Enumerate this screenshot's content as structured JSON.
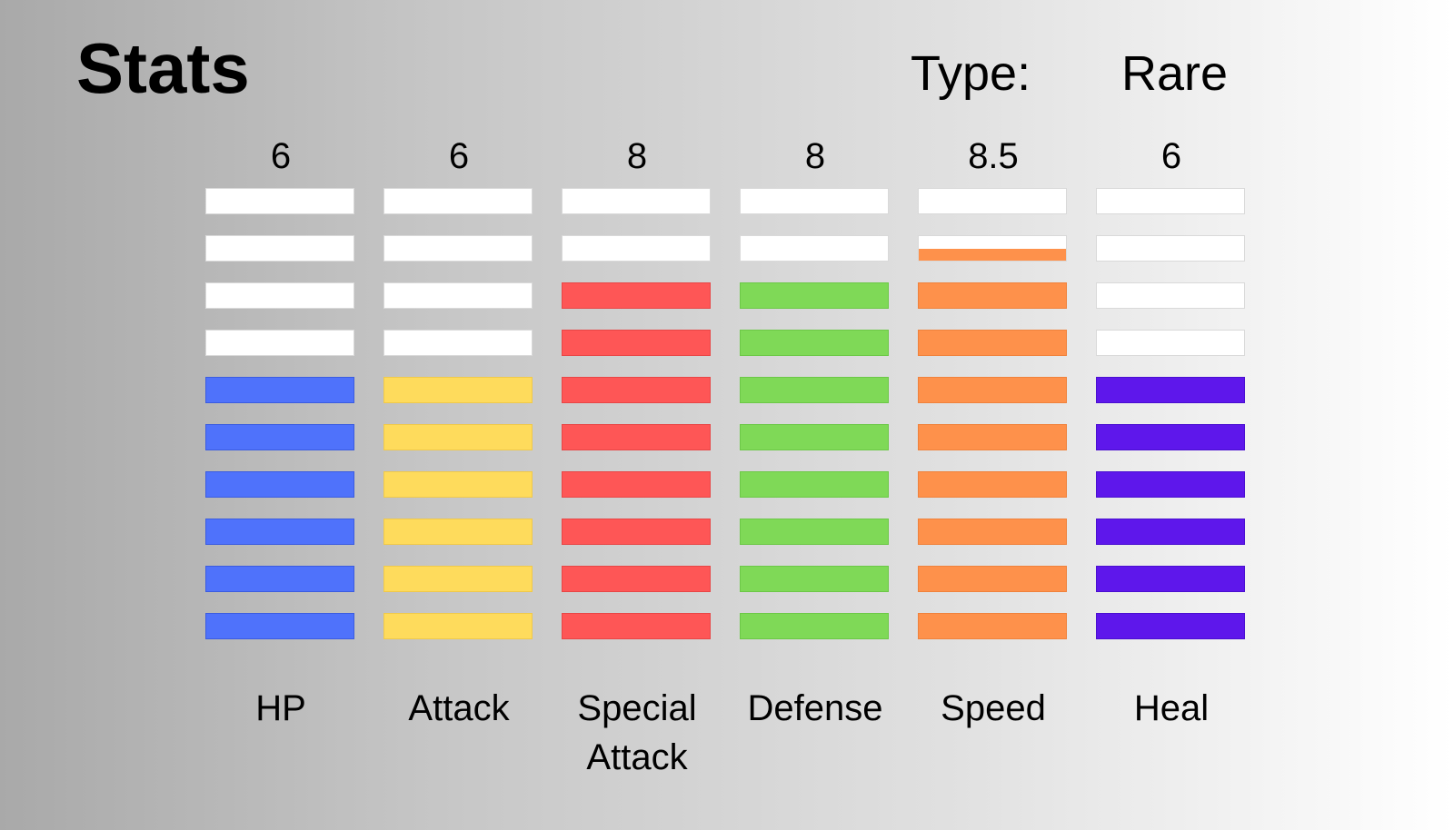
{
  "title": "Stats",
  "type": {
    "label": "Type:",
    "value": "Rare"
  },
  "max_segments": 10,
  "stats": [
    {
      "name": "HP",
      "value": "6",
      "filled": 6,
      "color": "#4f72fb",
      "border": "#3b5ce0"
    },
    {
      "name": "Attack",
      "value": "6",
      "filled": 6,
      "color": "#fedb5c",
      "border": "#f0c94a"
    },
    {
      "name": "Special Attack",
      "value": "8",
      "filled": 8,
      "color": "#fe5656",
      "border": "#e84646"
    },
    {
      "name": "Defense",
      "value": "8",
      "filled": 8,
      "color": "#7fd957",
      "border": "#6cc847"
    },
    {
      "name": "Speed",
      "value": "8.5",
      "filled": 8.5,
      "color": "#fe914b",
      "border": "#f0823c"
    },
    {
      "name": "Heal",
      "value": "6",
      "filled": 6,
      "color": "#5e17eb",
      "border": "#4a0fd0"
    }
  ]
}
